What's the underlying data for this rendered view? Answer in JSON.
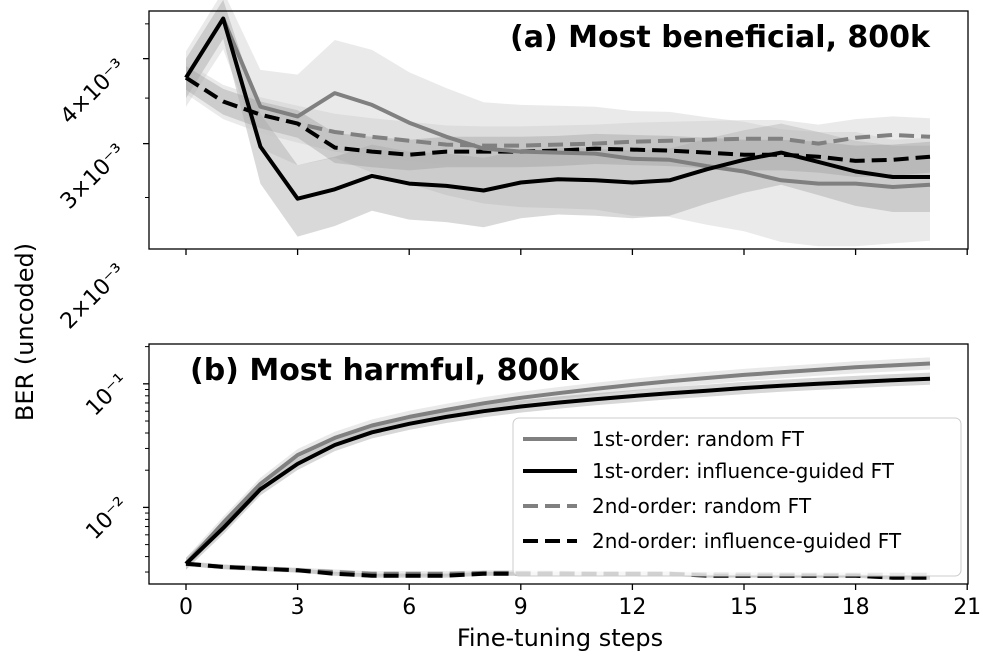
{
  "chart_data": [
    {
      "type": "line",
      "title": "(a) Most beneficial, 800k",
      "xlabel": "",
      "ylabel": "BER (uncoded)",
      "yscale": "log",
      "ylim": [
        0.0021,
        0.0047
      ],
      "yticks": [
        {
          "value": 0.002,
          "label": "2×10⁻³"
        },
        {
          "value": 0.003,
          "label": "3×10⁻³"
        },
        {
          "value": 0.004,
          "label": "4×10⁻³"
        }
      ],
      "xlim": [
        -1,
        21
      ],
      "x": [
        0,
        1,
        2,
        3,
        4,
        5,
        6,
        7,
        8,
        9,
        10,
        11,
        12,
        13,
        14,
        15,
        16,
        17,
        18,
        19,
        20
      ],
      "series": [
        {
          "name": "1st-order: random FT",
          "color": "#808080",
          "dash": "solid",
          "values": [
            0.00375,
            0.00458,
            0.0034,
            0.00329,
            0.00356,
            0.00342,
            0.00322,
            0.00307,
            0.00295,
            0.00292,
            0.00291,
            0.0029,
            0.00285,
            0.00284,
            0.00278,
            0.00273,
            0.00265,
            0.00262,
            0.00262,
            0.00259,
            0.00261
          ],
          "band": [
            0.00035,
            0.00045,
            0.00045,
            0.0005,
            0.0007,
            0.0007,
            0.0006,
            0.00055,
            0.0005,
            0.0005,
            0.0005,
            0.0005,
            0.0005,
            0.0005,
            0.0005,
            0.0005,
            0.0005,
            0.0005,
            0.0005,
            0.00045,
            0.00045
          ]
        },
        {
          "name": "1st-order: influence-guided FT",
          "color": "#000000",
          "dash": "solid",
          "values": [
            0.00375,
            0.00458,
            0.00297,
            0.00249,
            0.00257,
            0.00269,
            0.00262,
            0.0026,
            0.00256,
            0.00263,
            0.00266,
            0.00265,
            0.00263,
            0.00265,
            0.00275,
            0.00284,
            0.00291,
            0.00282,
            0.00273,
            0.00268,
            0.00268
          ],
          "band": [
            0.00025,
            0.0003,
            0.00035,
            0.0003,
            0.0003,
            0.0003,
            0.0003,
            0.0003,
            0.0003,
            0.0003,
            0.0003,
            0.0003,
            0.0003,
            0.0003,
            0.0003,
            0.0003,
            0.0003,
            0.0003,
            0.0003,
            0.0003,
            0.0003
          ]
        },
        {
          "name": "2nd-order: random FT",
          "color": "#808080",
          "dash": "dashed",
          "values": [
            0.00375,
            0.00346,
            0.00331,
            0.00321,
            0.00312,
            0.00307,
            0.00303,
            0.00299,
            0.00298,
            0.00298,
            0.00299,
            0.003,
            0.00302,
            0.00303,
            0.00304,
            0.00305,
            0.00305,
            0.003,
            0.00306,
            0.00309,
            0.00307
          ],
          "band": [
            0.0002,
            0.0002,
            0.0002,
            0.0002,
            0.0002,
            0.0002,
            0.0002,
            0.0002,
            0.0002,
            0.0002,
            0.0002,
            0.0002,
            0.0002,
            0.0002,
            0.0002,
            0.0002,
            0.0002,
            0.0002,
            0.0002,
            0.0002,
            0.0002
          ]
        },
        {
          "name": "2nd-order: influence-guided FT",
          "color": "#000000",
          "dash": "dashed",
          "values": [
            0.00375,
            0.00346,
            0.00331,
            0.00321,
            0.00296,
            0.00292,
            0.00289,
            0.00292,
            0.00292,
            0.00292,
            0.00293,
            0.00295,
            0.00294,
            0.00293,
            0.00291,
            0.00289,
            0.00289,
            0.00287,
            0.00283,
            0.00284,
            0.00287
          ],
          "band": [
            0.00015,
            0.00015,
            0.00015,
            0.00015,
            0.00015,
            0.00015,
            0.00015,
            0.00015,
            0.00015,
            0.00015,
            0.00015,
            0.00015,
            0.00015,
            0.00015,
            0.00015,
            0.00015,
            0.00015,
            0.00015,
            0.00015,
            0.00015,
            0.00015
          ]
        }
      ]
    },
    {
      "type": "line",
      "title": "(b) Most harmful, 800k",
      "xlabel": "Fine-tuning steps",
      "ylabel": "BER (uncoded)",
      "yscale": "log",
      "ylim": [
        0.0024,
        0.21
      ],
      "yticks": [
        {
          "value": 0.01,
          "label": "10⁻²"
        },
        {
          "value": 0.1,
          "label": "10⁻¹"
        }
      ],
      "xlim": [
        -1,
        21
      ],
      "xticks": [
        0,
        3,
        6,
        9,
        12,
        15,
        18,
        21
      ],
      "x": [
        0,
        1,
        2,
        3,
        4,
        5,
        6,
        7,
        8,
        9,
        10,
        11,
        12,
        13,
        14,
        15,
        16,
        17,
        18,
        19,
        20
      ],
      "legend_position": "lower-right",
      "series": [
        {
          "name": "1st-order: random FT",
          "color": "#808080",
          "dash": "solid",
          "values": [
            0.0035,
            0.0075,
            0.0155,
            0.0265,
            0.0365,
            0.046,
            0.054,
            0.0615,
            0.0695,
            0.077,
            0.084,
            0.091,
            0.098,
            0.105,
            0.1115,
            0.118,
            0.124,
            0.13,
            0.136,
            0.141,
            0.146
          ],
          "band_factor": 1.12
        },
        {
          "name": "1st-order: influence-guided FT",
          "color": "#000000",
          "dash": "solid",
          "values": [
            0.0035,
            0.0068,
            0.014,
            0.0225,
            0.032,
            0.0405,
            0.0475,
            0.054,
            0.06,
            0.0655,
            0.0705,
            0.075,
            0.0795,
            0.084,
            0.088,
            0.0925,
            0.0965,
            0.1,
            0.1035,
            0.107,
            0.11
          ],
          "band_factor": 1.12
        },
        {
          "name": "2nd-order: random FT",
          "color": "#808080",
          "dash": "dashed",
          "values": [
            0.0035,
            0.0033,
            0.0032,
            0.0031,
            0.003,
            0.0029,
            0.0029,
            0.0029,
            0.00295,
            0.00295,
            0.00295,
            0.0029,
            0.0029,
            0.0029,
            0.00288,
            0.00287,
            0.00286,
            0.00285,
            0.00285,
            0.00285,
            0.00285
          ],
          "band_factor": 1.05
        },
        {
          "name": "2nd-order: influence-guided FT",
          "color": "#000000",
          "dash": "dashed",
          "values": [
            0.0035,
            0.0033,
            0.0032,
            0.0031,
            0.0029,
            0.0028,
            0.0028,
            0.0028,
            0.0029,
            0.0029,
            0.0029,
            0.0029,
            0.0029,
            0.0029,
            0.0028,
            0.0028,
            0.0028,
            0.0028,
            0.0028,
            0.0027,
            0.0027
          ],
          "band_factor": 1.04
        }
      ]
    }
  ]
}
